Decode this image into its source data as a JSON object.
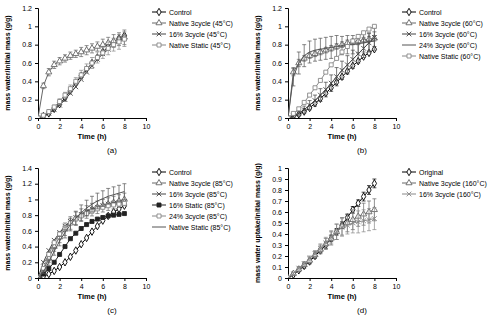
{
  "chart_data": [
    {
      "type": "line",
      "title": "(a)",
      "x_label": "Time (h)",
      "y_label": "mass water/initial mass (g/g)",
      "x": [
        0,
        0.5,
        1,
        1.5,
        2,
        2.5,
        3,
        3.5,
        4,
        4.5,
        5,
        5.5,
        6,
        6.5,
        7,
        7.5,
        8
      ],
      "xlim": [
        0,
        10
      ],
      "xticks": [
        0,
        2,
        4,
        6,
        8,
        10
      ],
      "ylim": [
        0,
        1.2
      ],
      "yticks": [
        0,
        0.2,
        0.4,
        0.6,
        0.8,
        1,
        1.2
      ],
      "legend": "right",
      "series": [
        {
          "name": "Control",
          "color": "#000000",
          "marker": "diamond",
          "line_style": "solid",
          "values": [
            0,
            0.02,
            0.05,
            0.1,
            0.15,
            0.22,
            0.3,
            0.38,
            0.46,
            0.53,
            0.6,
            0.66,
            0.72,
            0.78,
            0.83,
            0.87,
            0.9
          ]
        },
        {
          "name": "Native 3cycle (45°C)",
          "color": "#666666",
          "marker": "triangle",
          "line_style": "solid",
          "values": [
            0,
            0.35,
            0.5,
            0.58,
            0.62,
            0.65,
            0.68,
            0.7,
            0.72,
            0.74,
            0.76,
            0.78,
            0.8,
            0.82,
            0.84,
            0.86,
            0.88
          ],
          "errors": [
            0,
            0.03,
            0.04,
            0.04,
            0.04,
            0.04,
            0.04,
            0.04,
            0.05,
            0.05,
            0.05,
            0.05,
            0.06,
            0.06,
            0.07,
            0.07,
            0.08
          ]
        },
        {
          "name": "16% 3cycle (45°C)",
          "color": "#444444",
          "marker": "x",
          "line_style": "solid",
          "values": [
            0,
            0.02,
            0.05,
            0.09,
            0.14,
            0.2,
            0.27,
            0.34,
            0.42,
            0.5,
            0.57,
            0.64,
            0.7,
            0.75,
            0.8,
            0.84,
            0.87
          ]
        },
        {
          "name": "Native Static (45°C)",
          "color": "#888888",
          "marker": "square",
          "line_style": "solid",
          "values": [
            0,
            0.03,
            0.07,
            0.12,
            0.18,
            0.25,
            0.32,
            0.4,
            0.47,
            0.54,
            0.6,
            0.66,
            0.71,
            0.76,
            0.8,
            0.83,
            0.86
          ],
          "errors": [
            0,
            0.01,
            0.02,
            0.02,
            0.03,
            0.03,
            0.04,
            0.04,
            0.05,
            0.05,
            0.06,
            0.06,
            0.06,
            0.07,
            0.07,
            0.08,
            0.08
          ]
        }
      ]
    },
    {
      "type": "line",
      "title": "(b)",
      "x_label": "Time (h)",
      "y_label": "mass water/initial mass (g/g)",
      "x": [
        0,
        0.5,
        1,
        1.5,
        2,
        2.5,
        3,
        3.5,
        4,
        4.5,
        5,
        5.5,
        6,
        6.5,
        7,
        7.5,
        8
      ],
      "xlim": [
        0,
        10
      ],
      "xticks": [
        0,
        2,
        4,
        6,
        8,
        10
      ],
      "ylim": [
        0,
        1.2
      ],
      "yticks": [
        0,
        0.2,
        0.4,
        0.6,
        0.8,
        1,
        1.2
      ],
      "legend": "right",
      "series": [
        {
          "name": "Control",
          "color": "#000000",
          "marker": "diamond",
          "line_style": "solid",
          "values": [
            0,
            0.02,
            0.04,
            0.07,
            0.11,
            0.16,
            0.21,
            0.27,
            0.33,
            0.39,
            0.45,
            0.51,
            0.57,
            0.62,
            0.67,
            0.71,
            0.75
          ]
        },
        {
          "name": "Native 3cycle (60°C)",
          "color": "#666666",
          "marker": "triangle",
          "line_style": "solid",
          "values": [
            0,
            0.5,
            0.6,
            0.65,
            0.68,
            0.7,
            0.72,
            0.74,
            0.76,
            0.78,
            0.8,
            0.82,
            0.83,
            0.84,
            0.85,
            0.86,
            0.87
          ],
          "errors": [
            0,
            0.04,
            0.04,
            0.03,
            0.03,
            0.03,
            0.03,
            0.03,
            0.03,
            0.03,
            0.03,
            0.03,
            0.03,
            0.03,
            0.03,
            0.03,
            0.03
          ]
        },
        {
          "name": "16% 3cycle (60°C)",
          "color": "#444444",
          "marker": "x",
          "line_style": "solid",
          "values": [
            0,
            0.02,
            0.05,
            0.09,
            0.14,
            0.19,
            0.25,
            0.31,
            0.38,
            0.45,
            0.52,
            0.58,
            0.64,
            0.7,
            0.76,
            0.82,
            0.88
          ],
          "errors": [
            0,
            0.02,
            0.03,
            0.04,
            0.05,
            0.06,
            0.07,
            0.08,
            0.09,
            0.1,
            0.1,
            0.1,
            0.1,
            0.1,
            0.1,
            0.1,
            0.1
          ]
        },
        {
          "name": "24% 3cycle (60°C)",
          "color": "#555555",
          "marker": "none",
          "line_style": "solid",
          "values": [
            0,
            0.45,
            0.6,
            0.68,
            0.72,
            0.74,
            0.75,
            0.76,
            0.77,
            0.78,
            0.79,
            0.8,
            0.8,
            0.81,
            0.82,
            0.83,
            0.84
          ],
          "errors": [
            0,
            0.1,
            0.12,
            0.12,
            0.12,
            0.12,
            0.12,
            0.12,
            0.12,
            0.12,
            0.1,
            0.1,
            0.1,
            0.1,
            0.1,
            0.1,
            0.1
          ]
        },
        {
          "name": "Native Static (60°C)",
          "color": "#888888",
          "marker": "square",
          "line_style": "solid",
          "values": [
            0,
            0.05,
            0.1,
            0.17,
            0.25,
            0.33,
            0.41,
            0.5,
            0.58,
            0.65,
            0.72,
            0.78,
            0.84,
            0.89,
            0.93,
            0.97,
            1
          ]
        }
      ]
    },
    {
      "type": "line",
      "title": "(c)",
      "x_label": "Time (h)",
      "y_label": "mass water/initial mass (g/g)",
      "x": [
        0,
        0.5,
        1,
        1.5,
        2,
        2.5,
        3,
        3.5,
        4,
        4.5,
        5,
        5.5,
        6,
        6.5,
        7,
        7.5,
        8
      ],
      "xlim": [
        0,
        10
      ],
      "xticks": [
        0,
        2,
        4,
        6,
        8,
        10
      ],
      "ylim": [
        0,
        1.4
      ],
      "yticks": [
        0,
        0.2,
        0.4,
        0.6,
        0.8,
        1,
        1.2,
        1.4
      ],
      "legend": "right",
      "series": [
        {
          "name": "Control",
          "color": "#000000",
          "marker": "diamond",
          "line_style": "solid",
          "values": [
            0,
            0.02,
            0.05,
            0.09,
            0.14,
            0.2,
            0.27,
            0.35,
            0.43,
            0.51,
            0.59,
            0.66,
            0.73,
            0.79,
            0.84,
            0.88,
            0.92
          ]
        },
        {
          "name": "Native 3cycle (85°C)",
          "color": "#666666",
          "marker": "triangle",
          "line_style": "solid",
          "values": [
            0,
            0.1,
            0.25,
            0.4,
            0.52,
            0.62,
            0.7,
            0.76,
            0.8,
            0.84,
            0.87,
            0.9,
            0.92,
            0.94,
            0.96,
            0.98,
            1
          ],
          "errors": [
            0,
            0.03,
            0.05,
            0.06,
            0.07,
            0.08,
            0.08,
            0.08,
            0.08,
            0.08,
            0.08,
            0.08,
            0.08,
            0.08,
            0.08,
            0.08,
            0.08
          ]
        },
        {
          "name": "16% 3cycle (85°C)",
          "color": "#444444",
          "marker": "x",
          "line_style": "solid",
          "values": [
            0,
            0.2,
            0.35,
            0.48,
            0.58,
            0.66,
            0.72,
            0.77,
            0.81,
            0.85,
            0.88,
            0.9,
            0.92,
            0.94,
            0.95,
            0.96,
            0.97
          ]
        },
        {
          "name": "16% Static (85°C)",
          "color": "#222222",
          "marker": "filled-square",
          "line_style": "solid",
          "values": [
            0,
            0.05,
            0.12,
            0.2,
            0.3,
            0.4,
            0.5,
            0.57,
            0.63,
            0.68,
            0.72,
            0.75,
            0.77,
            0.79,
            0.8,
            0.81,
            0.82
          ]
        },
        {
          "name": "24% 3cycle (85°C)",
          "color": "#888888",
          "marker": "square",
          "line_style": "solid",
          "values": [
            0,
            0.12,
            0.3,
            0.45,
            0.56,
            0.64,
            0.7,
            0.75,
            0.79,
            0.82,
            0.85,
            0.88,
            0.9,
            0.92,
            0.93,
            0.94,
            0.95
          ]
        },
        {
          "name": "Native Static (85°C)",
          "color": "#555555",
          "marker": "none",
          "line_style": "solid",
          "values": [
            0,
            0.08,
            0.2,
            0.34,
            0.47,
            0.58,
            0.68,
            0.76,
            0.83,
            0.89,
            0.94,
            0.98,
            1.01,
            1.04,
            1.06,
            1.08,
            1.1
          ],
          "errors": [
            0,
            0.02,
            0.04,
            0.05,
            0.06,
            0.07,
            0.08,
            0.09,
            0.1,
            0.1,
            0.1,
            0.1,
            0.1,
            0.1,
            0.1,
            0.1,
            0.1
          ]
        }
      ]
    },
    {
      "type": "line",
      "title": "(d)",
      "x_label": "Time (h)",
      "y_label": "mass water uptake/initial mass (g/g)",
      "x": [
        0,
        0.5,
        1,
        1.5,
        2,
        2.5,
        3,
        3.5,
        4,
        4.5,
        5,
        5.5,
        6,
        6.5,
        7,
        7.5,
        8
      ],
      "xlim": [
        0,
        10
      ],
      "xticks": [
        0,
        2,
        4,
        6,
        8,
        10
      ],
      "ylim": [
        0,
        1
      ],
      "yticks": [
        0,
        0.1,
        0.2,
        0.3,
        0.4,
        0.5,
        0.6,
        0.7,
        0.8,
        0.9,
        1
      ],
      "legend": "right",
      "series": [
        {
          "name": "Original",
          "color": "#000000",
          "marker": "diamond",
          "line_style": "solid",
          "values": [
            0,
            0.03,
            0.07,
            0.11,
            0.15,
            0.2,
            0.25,
            0.3,
            0.36,
            0.42,
            0.48,
            0.55,
            0.62,
            0.68,
            0.74,
            0.8,
            0.86
          ],
          "errors": [
            0,
            0.01,
            0.01,
            0.02,
            0.02,
            0.02,
            0.02,
            0.03,
            0.03,
            0.03,
            0.03,
            0.03,
            0.03,
            0.03,
            0.04,
            0.04,
            0.04
          ]
        },
        {
          "name": "Native 3cycle (160°C)",
          "color": "#666666",
          "marker": "triangle",
          "line_style": "solid",
          "values": [
            0,
            0.04,
            0.08,
            0.12,
            0.16,
            0.21,
            0.26,
            0.31,
            0.36,
            0.42,
            0.47,
            0.5,
            0.53,
            0.56,
            0.58,
            0.6,
            0.62
          ],
          "errors": [
            0,
            0.01,
            0.02,
            0.02,
            0.03,
            0.03,
            0.04,
            0.05,
            0.06,
            0.07,
            0.08,
            0.08,
            0.09,
            0.09,
            0.1,
            0.1,
            0.1
          ]
        },
        {
          "name": "16% 3cycle (160°C)",
          "color": "#888888",
          "marker": "x",
          "line_style": "solid",
          "values": [
            0,
            0.04,
            0.09,
            0.13,
            0.18,
            0.22,
            0.27,
            0.32,
            0.37,
            0.42,
            0.46,
            0.48,
            0.5,
            0.51,
            0.52,
            0.53,
            0.54
          ],
          "errors": [
            0,
            0.01,
            0.01,
            0.02,
            0.02,
            0.03,
            0.04,
            0.05,
            0.06,
            0.07,
            0.08,
            0.08,
            0.09,
            0.1,
            0.1,
            0.1,
            0.1
          ]
        }
      ]
    }
  ]
}
